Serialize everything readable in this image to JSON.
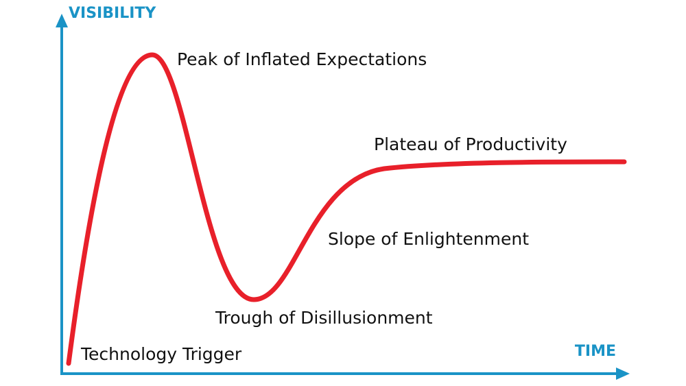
{
  "axes": {
    "y_label": "VISIBILITY",
    "x_label": "TIME"
  },
  "phases": [
    {
      "label": "Technology Trigger"
    },
    {
      "label": "Peak of Inflated Expectations"
    },
    {
      "label": "Trough of Disillusionment"
    },
    {
      "label": "Slope of Enlightenment"
    },
    {
      "label": "Plateau of Productivity"
    }
  ]
}
